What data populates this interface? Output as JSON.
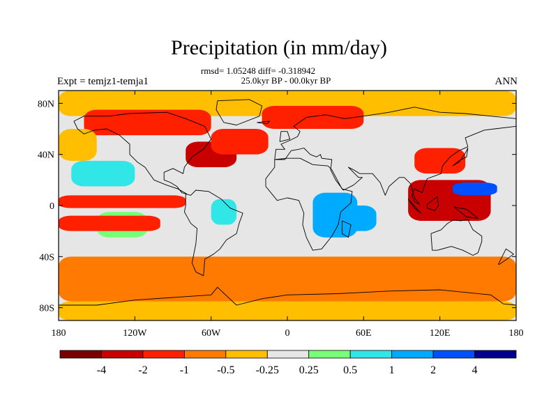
{
  "title": "Precipitation (in mm/day)",
  "stats_line": "rmsd= 1.05248 diff= -0.318942",
  "period": "25.0kyr BP - 00.0kyr BP",
  "experiment": "Expt = temjz1-temja1",
  "season": "ANN",
  "chart_data": {
    "type": "heatmap",
    "description_kind": "global map of annual precipitation difference",
    "title": "Precipitation (in mm/day)",
    "x_axis": {
      "range": [
        -180,
        180
      ],
      "ticks": [
        -180,
        -120,
        -60,
        0,
        60,
        120,
        180
      ],
      "tick_labels": [
        "180",
        "120W",
        "60W",
        "0",
        "60E",
        "120E",
        "180"
      ]
    },
    "y_axis": {
      "range": [
        -90,
        90
      ],
      "ticks": [
        80,
        40,
        0,
        -40,
        -80
      ],
      "tick_labels": [
        "80N",
        "40N",
        "0",
        "40S",
        "80S"
      ]
    },
    "colorbar": {
      "levels": [
        -4,
        -2,
        -1,
        -0.5,
        -0.25,
        0.25,
        0.5,
        1,
        2,
        4
      ],
      "level_labels": [
        "-4",
        "-2",
        "-1",
        "-0.5",
        "-0.25",
        "0.25",
        "0.5",
        "1",
        "2",
        "4"
      ],
      "colors": [
        "#7a0000",
        "#c80000",
        "#ff2000",
        "#ff7a00",
        "#ffbe00",
        "#e6e6e6",
        "#78ff78",
        "#30e6e6",
        "#00aaff",
        "#0050ff",
        "#00008c"
      ]
    },
    "regions": [
      {
        "lon": [
          -180,
          180
        ],
        "lat": [
          70,
          90
        ],
        "value": -0.4
      },
      {
        "lon": [
          -160,
          -60
        ],
        "lat": [
          55,
          75
        ],
        "value": -1.5
      },
      {
        "lon": [
          -20,
          60
        ],
        "lat": [
          60,
          78
        ],
        "value": -1.5
      },
      {
        "lon": [
          -80,
          -40
        ],
        "lat": [
          30,
          50
        ],
        "value": -2.5
      },
      {
        "lon": [
          -60,
          -15
        ],
        "lat": [
          40,
          60
        ],
        "value": -1.2
      },
      {
        "lon": [
          -180,
          -150
        ],
        "lat": [
          35,
          60
        ],
        "value": -0.4
      },
      {
        "lon": [
          -170,
          -120
        ],
        "lat": [
          15,
          35
        ],
        "value": 0.8
      },
      {
        "lon": [
          -150,
          -110
        ],
        "lat": [
          -25,
          -5
        ],
        "value": 0.4
      },
      {
        "lon": [
          -180,
          -80
        ],
        "lat": [
          -2,
          8
        ],
        "value": -1.3
      },
      {
        "lon": [
          -180,
          -100
        ],
        "lat": [
          -20,
          -8
        ],
        "value": -1.1
      },
      {
        "lon": [
          -60,
          -40
        ],
        "lat": [
          -15,
          5
        ],
        "value": 0.6
      },
      {
        "lon": [
          20,
          55
        ],
        "lat": [
          -25,
          10
        ],
        "value": 2.0
      },
      {
        "lon": [
          40,
          70
        ],
        "lat": [
          -20,
          0
        ],
        "value": 1.2
      },
      {
        "lon": [
          95,
          160
        ],
        "lat": [
          -12,
          20
        ],
        "value": -2.5
      },
      {
        "lon": [
          130,
          165
        ],
        "lat": [
          8,
          18
        ],
        "value": 2.2
      },
      {
        "lon": [
          100,
          140
        ],
        "lat": [
          25,
          45
        ],
        "value": -1.2
      },
      {
        "lon": [
          -180,
          180
        ],
        "lat": [
          -75,
          -40
        ],
        "value": -0.6
      },
      {
        "lon": [
          -180,
          180
        ],
        "lat": [
          -90,
          -75
        ],
        "value": -0.3
      }
    ]
  }
}
